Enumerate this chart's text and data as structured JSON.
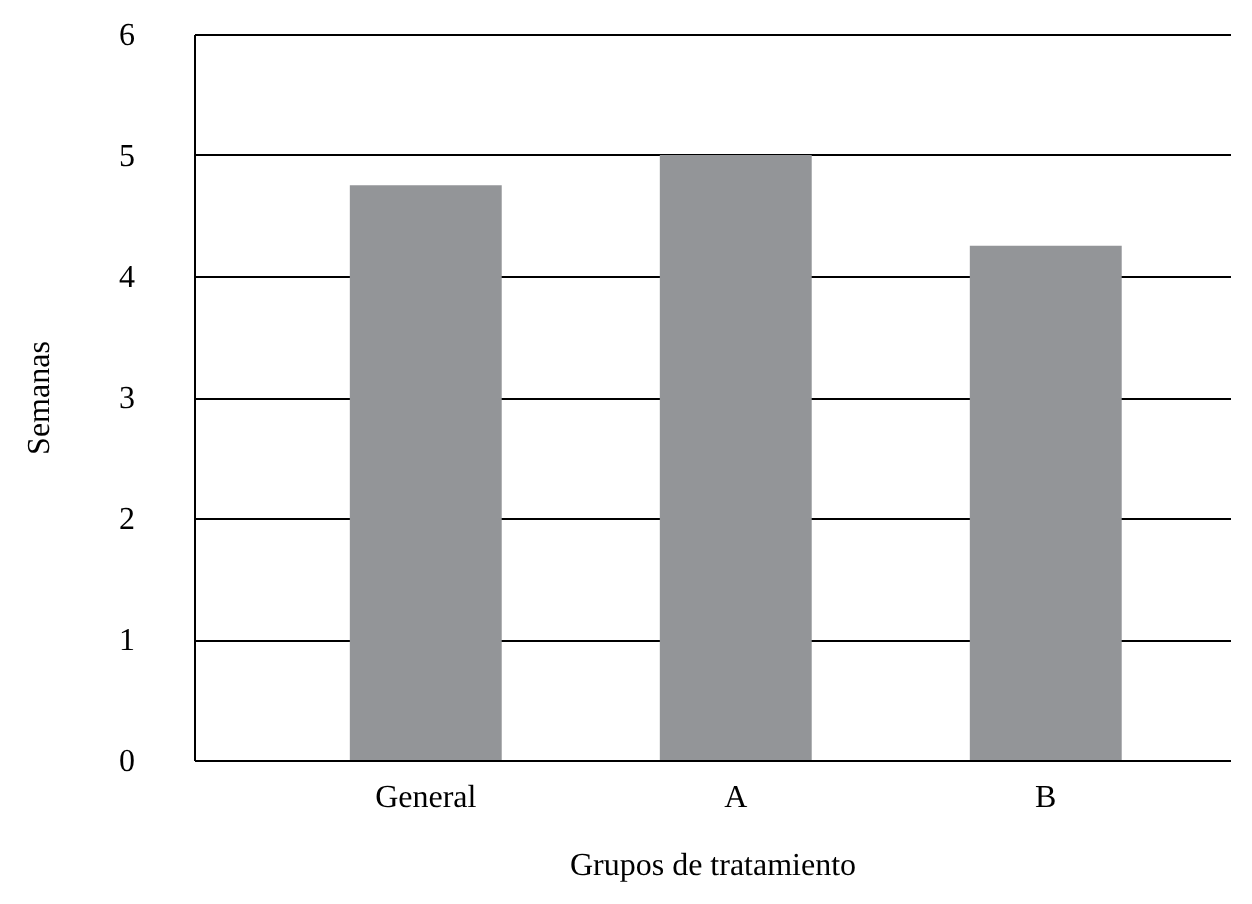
{
  "chart_data": {
    "type": "bar",
    "xlabel": "Grupos de tratamiento",
    "ylabel": "Semanas",
    "categories": [
      "General",
      "A",
      "B"
    ],
    "values": [
      4.75,
      5.0,
      4.25
    ],
    "color": "#939598",
    "ylim": [
      0,
      6
    ],
    "yticks": [
      0,
      1,
      2,
      3,
      4,
      5,
      6
    ],
    "grid": "y"
  }
}
